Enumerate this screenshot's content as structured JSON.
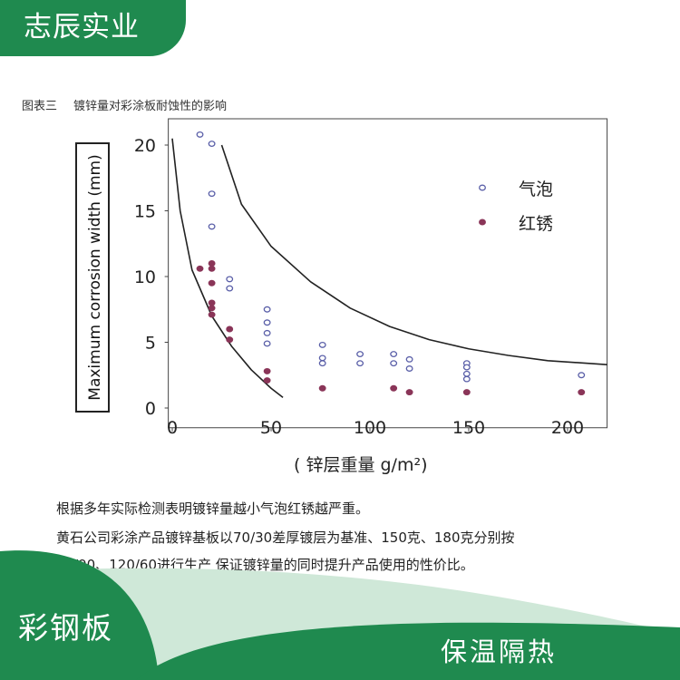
{
  "banner": {
    "top": "志辰实业",
    "bottom_left": "彩钢板",
    "bottom_right": "保温隔热"
  },
  "caption": {
    "label": "图表三",
    "title": "镀锌量对彩涂板耐蚀性的影响"
  },
  "description": [
    "根据多年实际检测表明镀锌量越小气泡红锈越严重。",
    "黄石公司彩涂产品镀锌基板以70/30差厚镀层为基准、150克、180克分别按",
    "60/90、120/60进行生产   保证镀锌量的同时提升产品使用的性价比。"
  ],
  "colors": {
    "green": "#1f8a4f",
    "light_green": "#cfe8d8",
    "blister": "#5a5fa8",
    "rust": "#8a3558"
  },
  "chart_data": {
    "type": "scatter",
    "xlabel": "( 锌层重量 g/m²)",
    "ylabel": "Maximum corrosion width (mm)",
    "xlim": [
      0,
      220
    ],
    "ylim": [
      0,
      21
    ],
    "xticks": [
      "0",
      "50",
      "100",
      "150",
      "200"
    ],
    "yticks": [
      "0",
      "5",
      "10",
      "15",
      "20"
    ],
    "legend_position": "top-right",
    "series": [
      {
        "name": "气泡",
        "marker": "hollow-circle",
        "color": "#5a5fa8",
        "points": [
          [
            14,
            20.8
          ],
          [
            20,
            20.1
          ],
          [
            20,
            16.3
          ],
          [
            20,
            13.8
          ],
          [
            29,
            9.8
          ],
          [
            29,
            9.1
          ],
          [
            48,
            7.5
          ],
          [
            48,
            6.5
          ],
          [
            48,
            5.7
          ],
          [
            48,
            4.9
          ],
          [
            76,
            4.8
          ],
          [
            76,
            3.8
          ],
          [
            76,
            3.4
          ],
          [
            95,
            4.1
          ],
          [
            95,
            3.4
          ],
          [
            112,
            4.1
          ],
          [
            112,
            3.4
          ],
          [
            120,
            3.7
          ],
          [
            120,
            3.0
          ],
          [
            149,
            3.4
          ],
          [
            149,
            3.1
          ],
          [
            149,
            2.6
          ],
          [
            149,
            2.2
          ],
          [
            207,
            2.5
          ]
        ]
      },
      {
        "name": "红锈",
        "marker": "filled-circle",
        "color": "#8a3558",
        "points": [
          [
            14,
            10.6
          ],
          [
            20,
            11.0
          ],
          [
            20,
            10.6
          ],
          [
            20,
            9.5
          ],
          [
            20,
            8.0
          ],
          [
            20,
            7.6
          ],
          [
            20,
            7.1
          ],
          [
            29,
            6.0
          ],
          [
            29,
            5.2
          ],
          [
            48,
            2.8
          ],
          [
            48,
            2.1
          ],
          [
            76,
            1.5
          ],
          [
            112,
            1.5
          ],
          [
            120,
            1.2
          ],
          [
            149,
            1.2
          ],
          [
            207,
            1.2
          ]
        ]
      }
    ],
    "envelope_curves": [
      {
        "points": [
          [
            0,
            20.5
          ],
          [
            4,
            15
          ],
          [
            10,
            10.5
          ],
          [
            20,
            7
          ],
          [
            30,
            4.7
          ],
          [
            40,
            2.9
          ],
          [
            50,
            1.5
          ],
          [
            56,
            0.8
          ]
        ]
      },
      {
        "points": [
          [
            25,
            20
          ],
          [
            35,
            15.5
          ],
          [
            50,
            12.3
          ],
          [
            70,
            9.6
          ],
          [
            90,
            7.6
          ],
          [
            110,
            6.2
          ],
          [
            130,
            5.2
          ],
          [
            150,
            4.5
          ],
          [
            170,
            4.0
          ],
          [
            190,
            3.6
          ],
          [
            210,
            3.4
          ],
          [
            220,
            3.3
          ]
        ]
      }
    ]
  }
}
